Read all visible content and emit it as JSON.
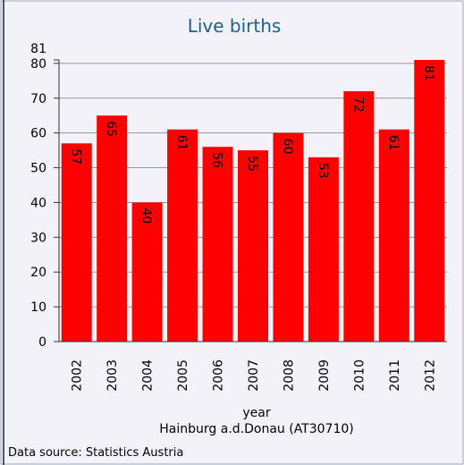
{
  "chart_data": {
    "type": "bar",
    "title": "Live births",
    "categories": [
      "2002",
      "2003",
      "2004",
      "2005",
      "2006",
      "2007",
      "2008",
      "2009",
      "2010",
      "2011",
      "2012"
    ],
    "values": [
      57,
      65,
      40,
      61,
      56,
      55,
      60,
      53,
      72,
      61,
      81
    ],
    "color": "#ff0000",
    "xlabel": "year",
    "subtitle": "Hainburg a.d.Donau (AT30710)",
    "source": "Data source: Statistics Austria",
    "ylim": [
      0,
      81
    ],
    "yticks": [
      0,
      10,
      20,
      30,
      40,
      50,
      60,
      70,
      80,
      81
    ],
    "grid": true
  }
}
